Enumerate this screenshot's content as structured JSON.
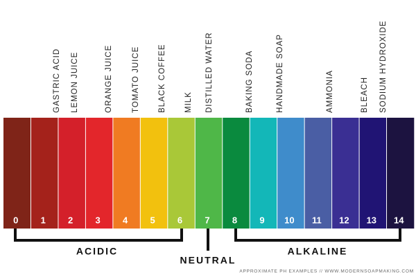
{
  "scale": {
    "segments": [
      {
        "number": "0",
        "color": "#7f2418"
      },
      {
        "number": "1",
        "color": "#a4221b"
      },
      {
        "number": "2",
        "color": "#d4202a"
      },
      {
        "number": "3",
        "color": "#e3262b"
      },
      {
        "number": "4",
        "color": "#f07b22"
      },
      {
        "number": "5",
        "color": "#f2c10e"
      },
      {
        "number": "6",
        "color": "#a9c838"
      },
      {
        "number": "7",
        "color": "#4fb748"
      },
      {
        "number": "8",
        "color": "#0a8a3e"
      },
      {
        "number": "9",
        "color": "#13b7b8"
      },
      {
        "number": "10",
        "color": "#3f8ccb"
      },
      {
        "number": "11",
        "color": "#4a5ea4"
      },
      {
        "number": "12",
        "color": "#3a2f93"
      },
      {
        "number": "13",
        "color": "#201474"
      },
      {
        "number": "14",
        "color": "#1c1340"
      }
    ],
    "examples": [
      "GASTRIC ACID",
      "LEMON JUICE",
      "ORANGE JUICE",
      "TOMATO JUICE",
      "BLACK COFFEE",
      "MILK",
      "DISTILLED WATER",
      "BAKING SODA",
      "HANDMADE SOAP",
      "AMMONIA",
      "BLEACH",
      "SODIUM HYDROXIDE"
    ],
    "groups": {
      "acidic": "ACIDIC",
      "neutral": "NEUTRAL",
      "alkaline": "ALKALINE"
    },
    "footer": "APPROXIMATE PH EXAMPLES // WWW.MODERNSOAPMAKING.COM"
  }
}
